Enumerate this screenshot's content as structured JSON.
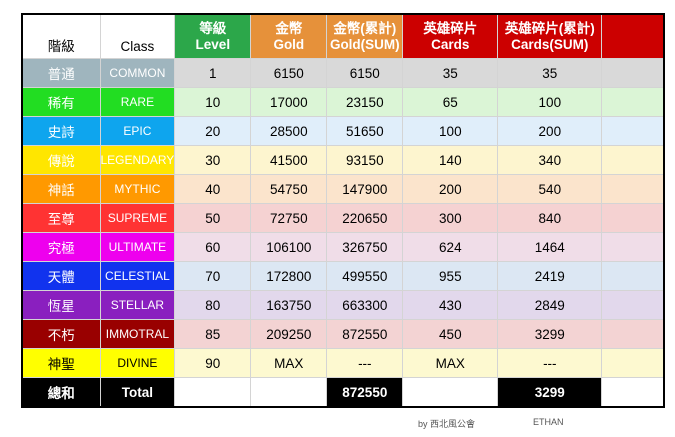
{
  "header": {
    "rank": "階級",
    "class": "Class",
    "level_cn": "等級",
    "level_en": "Level",
    "gold_cn": "金幣",
    "gold_en": "Gold",
    "gold_sum_cn": "金幣(累計)",
    "gold_sum_en": "Gold(SUM)",
    "cards_cn": "英雄碎片",
    "cards_en": "Cards",
    "cards_sum_cn": "英雄碎片(累計)",
    "cards_sum_en": "Cards(SUM)"
  },
  "header_colors": {
    "level": "#2ca74a",
    "gold": "#e6913a",
    "gold_sum": "#e6913a",
    "cards": "#cc0000",
    "cards_sum": "#cc0000",
    "extra": "#cc0000"
  },
  "rows": [
    {
      "name": "普通",
      "class": "COMMON",
      "level": "1",
      "gold": "6150",
      "gold_sum": "6150",
      "cards": "35",
      "cards_sum": "35",
      "name_bg": "#9fb5be",
      "name_fg": "#ffffff",
      "class_fg": "#ffffff",
      "row_bg": "#d9d9d9"
    },
    {
      "name": "稀有",
      "class": "RARE",
      "level": "10",
      "gold": "17000",
      "gold_sum": "23150",
      "cards": "65",
      "cards_sum": "100",
      "name_bg": "#22dd22",
      "name_fg": "#ffffff",
      "class_fg": "#ffffff",
      "row_bg": "#dbf5d6"
    },
    {
      "name": "史詩",
      "class": "EPIC",
      "level": "20",
      "gold": "28500",
      "gold_sum": "51650",
      "cards": "100",
      "cards_sum": "200",
      "name_bg": "#0ea5ee",
      "name_fg": "#ffffff",
      "class_fg": "#ffffff",
      "row_bg": "#e0eefa"
    },
    {
      "name": "傳說",
      "class": "LEGENDARY",
      "level": "30",
      "gold": "41500",
      "gold_sum": "93150",
      "cards": "140",
      "cards_sum": "340",
      "name_bg": "#ffe600",
      "name_fg": "#ffffff",
      "class_fg": "#ffffff",
      "row_bg": "#fdf5cf"
    },
    {
      "name": "神話",
      "class": "MYTHIC",
      "level": "40",
      "gold": "54750",
      "gold_sum": "147900",
      "cards": "200",
      "cards_sum": "540",
      "name_bg": "#ff9900",
      "name_fg": "#ffffff",
      "class_fg": "#ffffff",
      "row_bg": "#fbe4cc"
    },
    {
      "name": "至尊",
      "class": "SUPREME",
      "level": "50",
      "gold": "72750",
      "gold_sum": "220650",
      "cards": "300",
      "cards_sum": "840",
      "name_bg": "#ff3333",
      "name_fg": "#ffffff",
      "class_fg": "#ffffff",
      "row_bg": "#f5d2d2"
    },
    {
      "name": "究極",
      "class": "ULTIMATE",
      "level": "60",
      "gold": "106100",
      "gold_sum": "326750",
      "cards": "624",
      "cards_sum": "1464",
      "name_bg": "#ee00ee",
      "name_fg": "#ffffff",
      "class_fg": "#ffffff",
      "row_bg": "#f0dde8"
    },
    {
      "name": "天體",
      "class": "CELESTIAL",
      "level": "70",
      "gold": "172800",
      "gold_sum": "499550",
      "cards": "955",
      "cards_sum": "2419",
      "name_bg": "#1133ee",
      "name_fg": "#ffffff",
      "class_fg": "#ffffff",
      "row_bg": "#dce7f3"
    },
    {
      "name": "恆星",
      "class": "STELLAR",
      "level": "80",
      "gold": "163750",
      "gold_sum": "663300",
      "cards": "430",
      "cards_sum": "2849",
      "name_bg": "#8a1fbf",
      "name_fg": "#ffffff",
      "class_fg": "#ffffff",
      "row_bg": "#e2d8ec"
    },
    {
      "name": "不朽",
      "class": "IMMOTRAL",
      "level": "85",
      "gold": "209250",
      "gold_sum": "872550",
      "cards": "450",
      "cards_sum": "3299",
      "name_bg": "#990000",
      "name_fg": "#ffffff",
      "class_fg": "#ffffff",
      "row_bg": "#f3d3d3"
    },
    {
      "name": "神聖",
      "class": "DIVINE",
      "level": "90",
      "gold": "MAX",
      "gold_sum": "---",
      "cards": "MAX",
      "cards_sum": "---",
      "name_bg": "#ffff00",
      "name_fg": "#000000",
      "class_fg": "#000000",
      "row_bg": "#fdf9d0"
    }
  ],
  "total": {
    "name": "總和",
    "class": "Total",
    "gold_sum": "872550",
    "cards_sum": "3299"
  },
  "footer": {
    "credit": "by 西北風公會",
    "author": "ETHAN"
  }
}
